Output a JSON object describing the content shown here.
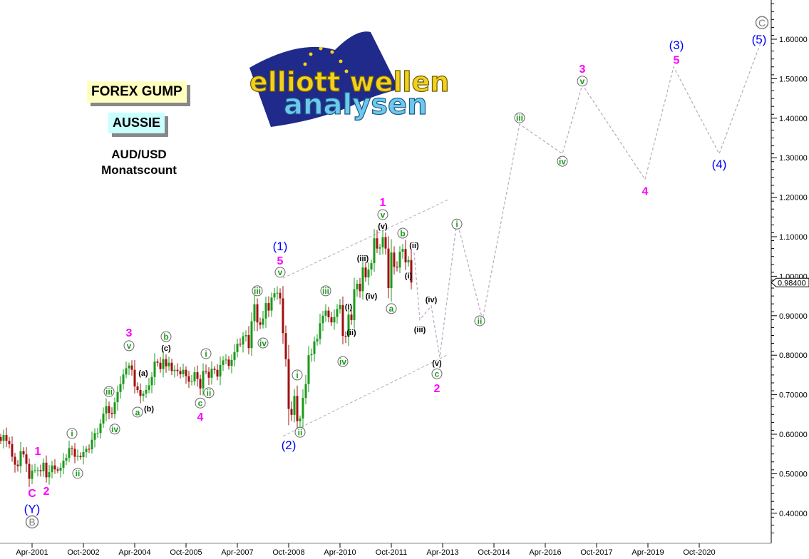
{
  "header": {
    "brand": "FOREX GUMP",
    "market": "AUSSIE",
    "pair": "AUD/USD",
    "timeframe": "Monatscount"
  },
  "logo": {
    "line1": "elliott wellen",
    "line2": "analysen"
  },
  "colors": {
    "up": "#1a9a1a",
    "down": "#a01010",
    "magenta": "#ff00ff",
    "blue": "#0000ff",
    "green": "#1a9a1a",
    "gray": "#808080",
    "projection": "#b8a8c0"
  },
  "chart_data": {
    "type": "candlestick",
    "timeframe": "monthly",
    "ylim": [
      0.33,
      1.7
    ],
    "yticks": [
      "0.40000",
      "0.50000",
      "0.60000",
      "0.70000",
      "0.80000",
      "0.90000",
      "1.00000",
      "1.10000",
      "1.20000",
      "1.30000",
      "1.40000",
      "1.50000",
      "1.60000"
    ],
    "xticks": [
      "Apr-2001",
      "Oct-2002",
      "Apr-2004",
      "Oct-2005",
      "Apr-2007",
      "Oct-2008",
      "Apr-2010",
      "Oct-2011",
      "Apr-2013",
      "Oct-2014",
      "Apr-2016",
      "Oct-2017",
      "Apr-2019",
      "Oct-2020"
    ],
    "last_price": "0.98400",
    "start": "2000-05",
    "closes": [
      0.583,
      0.598,
      0.583,
      0.575,
      0.543,
      0.523,
      0.519,
      0.557,
      0.549,
      0.525,
      0.487,
      0.508,
      0.509,
      0.509,
      0.506,
      0.528,
      0.491,
      0.504,
      0.521,
      0.511,
      0.508,
      0.515,
      0.533,
      0.54,
      0.565,
      0.563,
      0.543,
      0.545,
      0.542,
      0.555,
      0.563,
      0.562,
      0.586,
      0.603,
      0.603,
      0.627,
      0.652,
      0.671,
      0.654,
      0.651,
      0.681,
      0.707,
      0.727,
      0.751,
      0.767,
      0.774,
      0.763,
      0.721,
      0.712,
      0.697,
      0.703,
      0.712,
      0.724,
      0.745,
      0.784,
      0.781,
      0.765,
      0.79,
      0.772,
      0.781,
      0.76,
      0.763,
      0.76,
      0.752,
      0.763,
      0.747,
      0.733,
      0.734,
      0.757,
      0.74,
      0.716,
      0.76,
      0.758,
      0.743,
      0.766,
      0.763,
      0.746,
      0.775,
      0.787,
      0.789,
      0.773,
      0.788,
      0.808,
      0.829,
      0.827,
      0.848,
      0.851,
      0.818,
      0.886,
      0.929,
      0.883,
      0.877,
      0.893,
      0.932,
      0.913,
      0.946,
      0.957,
      0.958,
      0.944,
      0.856,
      0.79,
      0.664,
      0.649,
      0.697,
      0.633,
      0.64,
      0.692,
      0.727,
      0.8,
      0.803,
      0.835,
      0.841,
      0.881,
      0.9,
      0.913,
      0.896,
      0.883,
      0.897,
      0.917,
      0.927,
      0.849,
      0.847,
      0.903,
      0.889,
      0.967,
      0.981,
      0.962,
      1.022,
      0.997,
      1.017,
      1.033,
      1.096,
      1.07,
      1.073,
      1.099,
      1.07,
      0.97,
      1.06,
      1.024,
      1.022,
      1.062,
      1.069,
      1.035,
      1.041,
      0.984
    ],
    "projection": [
      [
        "2012-06",
        1.06
      ],
      [
        "2012-08",
        0.89
      ],
      [
        "2012-12",
        0.925
      ],
      [
        "2013-03",
        0.795
      ],
      [
        "2013-09",
        1.14
      ],
      [
        "2014-06",
        0.89
      ],
      [
        "2015-07",
        1.385
      ],
      [
        "2016-10",
        1.31
      ],
      [
        "2017-05",
        1.485
      ],
      [
        "2019-03",
        1.245
      ],
      [
        "2020-01",
        1.53
      ],
      [
        "2021-05",
        1.31
      ],
      [
        "2022-08",
        1.6
      ]
    ],
    "channels": [
      [
        [
          "2008-08",
          0.995
        ],
        [
          "2013-06",
          1.194
        ]
      ],
      [
        [
          "2008-08",
          0.595
        ],
        [
          "2013-06",
          0.802
        ]
      ]
    ],
    "wave_labels": [
      {
        "t": "1",
        "d": "2001-06",
        "v": 0.558,
        "s": "magenta"
      },
      {
        "t": "C",
        "d": "2001-04",
        "v": 0.452,
        "s": "magenta"
      },
      {
        "t": "2",
        "d": "2001-09",
        "v": 0.457,
        "s": "magenta"
      },
      {
        "t": "(Y)",
        "d": "2001-04",
        "v": 0.412,
        "s": "blue"
      },
      {
        "t": "B",
        "d": "2001-04",
        "v": 0.378,
        "s": "graycircle"
      },
      {
        "t": "i",
        "d": "2002-06",
        "v": 0.602,
        "s": "circle"
      },
      {
        "t": "ii",
        "d": "2002-08",
        "v": 0.501,
        "s": "circle"
      },
      {
        "t": "iii",
        "d": "2003-07",
        "v": 0.708,
        "s": "circle"
      },
      {
        "t": "iv",
        "d": "2003-09",
        "v": 0.613,
        "s": "circle"
      },
      {
        "t": "v",
        "d": "2004-02",
        "v": 0.824,
        "s": "circle"
      },
      {
        "t": "3",
        "d": "2004-02",
        "v": 0.858,
        "s": "magenta"
      },
      {
        "t": "(a)",
        "d": "2004-07",
        "v": 0.755,
        "s": "black"
      },
      {
        "t": "a",
        "d": "2004-05",
        "v": 0.656,
        "s": "circle"
      },
      {
        "t": "(b)",
        "d": "2004-09",
        "v": 0.665,
        "s": "black"
      },
      {
        "t": "b",
        "d": "2005-03",
        "v": 0.847,
        "s": "circle"
      },
      {
        "t": "(c)",
        "d": "2005-03",
        "v": 0.818,
        "s": "black"
      },
      {
        "t": "i",
        "d": "2006-05",
        "v": 0.804,
        "s": "circle"
      },
      {
        "t": "ii",
        "d": "2006-06",
        "v": 0.705,
        "s": "circle"
      },
      {
        "t": "c",
        "d": "2006-03",
        "v": 0.679,
        "s": "circle"
      },
      {
        "t": "4",
        "d": "2006-03",
        "v": 0.645,
        "s": "magenta"
      },
      {
        "t": "iii",
        "d": "2007-11",
        "v": 0.963,
        "s": "circle"
      },
      {
        "t": "iv",
        "d": "2008-01",
        "v": 0.831,
        "s": "circle"
      },
      {
        "t": "v",
        "d": "2008-07",
        "v": 1.01,
        "s": "circle"
      },
      {
        "t": "5",
        "d": "2008-07",
        "v": 1.04,
        "s": "magenta"
      },
      {
        "t": "(1)",
        "d": "2008-07",
        "v": 1.077,
        "s": "blue"
      },
      {
        "t": "(2)",
        "d": "2008-10",
        "v": 0.573,
        "s": "blue"
      },
      {
        "t": "ii",
        "d": "2009-02",
        "v": 0.605,
        "s": "circle"
      },
      {
        "t": "i",
        "d": "2009-01",
        "v": 0.75,
        "s": "circle"
      },
      {
        "t": "iii",
        "d": "2009-11",
        "v": 0.963,
        "s": "circle"
      },
      {
        "t": "iv",
        "d": "2010-05",
        "v": 0.784,
        "s": "circle"
      },
      {
        "t": "(i)",
        "d": "2010-07",
        "v": 0.923,
        "s": "black"
      },
      {
        "t": "(ii)",
        "d": "2010-08",
        "v": 0.858,
        "s": "black"
      },
      {
        "t": "(iii)",
        "d": "2010-12",
        "v": 1.046,
        "s": "black"
      },
      {
        "t": "(iv)",
        "d": "2011-03",
        "v": 0.95,
        "s": "black"
      },
      {
        "t": "(v)",
        "d": "2011-07",
        "v": 1.127,
        "s": "black"
      },
      {
        "t": "v",
        "d": "2011-07",
        "v": 1.156,
        "s": "circle"
      },
      {
        "t": "1",
        "d": "2011-07",
        "v": 1.188,
        "s": "magenta"
      },
      {
        "t": "a",
        "d": "2011-10",
        "v": 0.918,
        "s": "circle"
      },
      {
        "t": "b",
        "d": "2012-02",
        "v": 1.109,
        "s": "circle"
      },
      {
        "t": "(ii)",
        "d": "2012-06",
        "v": 1.078,
        "s": "black"
      },
      {
        "t": "(i)",
        "d": "2012-04",
        "v": 1.002,
        "s": "black"
      },
      {
        "t": "(iii)",
        "d": "2012-08",
        "v": 0.865,
        "s": "black"
      },
      {
        "t": "(iv)",
        "d": "2012-12",
        "v": 0.941,
        "s": "black"
      },
      {
        "t": "(v)",
        "d": "2013-02",
        "v": 0.78,
        "s": "black"
      },
      {
        "t": "c",
        "d": "2013-02",
        "v": 0.753,
        "s": "circle"
      },
      {
        "t": "2",
        "d": "2013-02",
        "v": 0.717,
        "s": "magenta"
      },
      {
        "t": "i",
        "d": "2013-09",
        "v": 1.132,
        "s": "circle"
      },
      {
        "t": "ii",
        "d": "2014-05",
        "v": 0.887,
        "s": "circle"
      },
      {
        "t": "iii",
        "d": "2015-07",
        "v": 1.401,
        "s": "circle"
      },
      {
        "t": "iv",
        "d": "2016-10",
        "v": 1.291,
        "s": "circle"
      },
      {
        "t": "v",
        "d": "2017-05",
        "v": 1.494,
        "s": "circle"
      },
      {
        "t": "3",
        "d": "2017-05",
        "v": 1.526,
        "s": "magenta"
      },
      {
        "t": "4",
        "d": "2019-03",
        "v": 1.216,
        "s": "magenta"
      },
      {
        "t": "5",
        "d": "2020-02",
        "v": 1.548,
        "s": "magenta"
      },
      {
        "t": "(3)",
        "d": "2020-02",
        "v": 1.586,
        "s": "blue"
      },
      {
        "t": "(4)",
        "d": "2021-05",
        "v": 1.284,
        "s": "blue"
      },
      {
        "t": "(5)",
        "d": "2022-07",
        "v": 1.6,
        "s": "blue"
      },
      {
        "t": "C",
        "d": "2022-08",
        "v": 1.642,
        "s": "graycircle"
      }
    ]
  }
}
